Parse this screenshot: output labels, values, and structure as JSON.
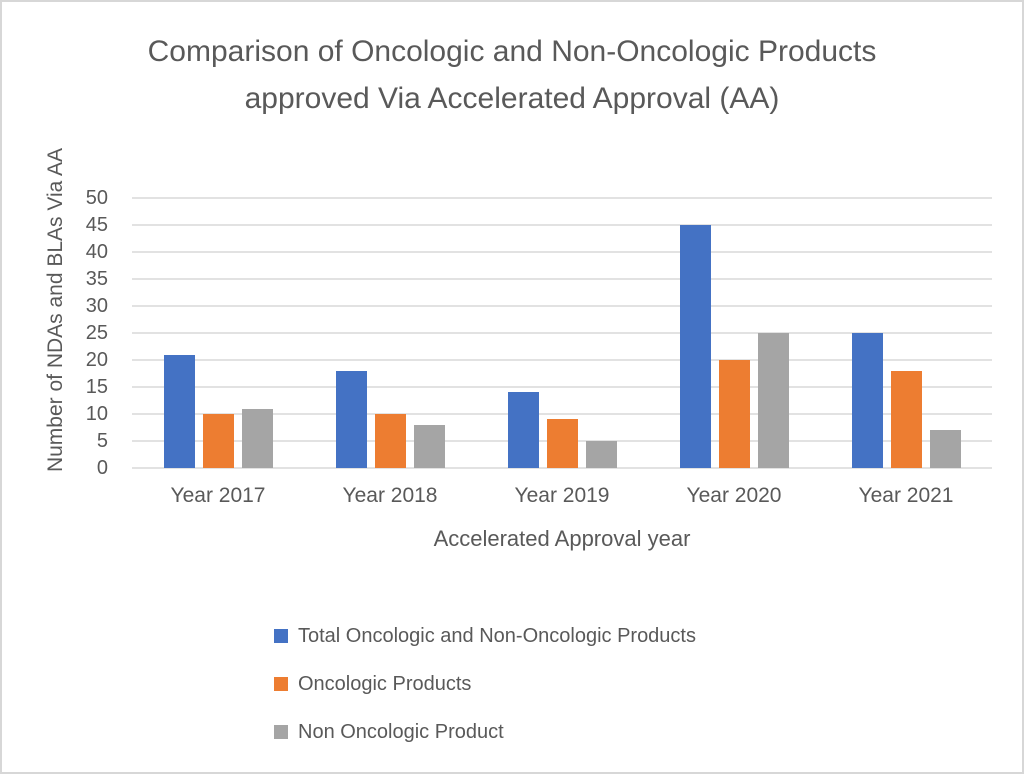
{
  "chart_data": {
    "type": "bar",
    "title": "Comparison of Oncologic and Non-Oncologic Products approved Via Accelerated Approval (AA)",
    "xlabel": "Accelerated Approval year",
    "ylabel": "Number of NDAs and BLAs Via AA",
    "categories": [
      "Year 2017",
      "Year 2018",
      "Year 2019",
      "Year 2020",
      "Year 2021"
    ],
    "series": [
      {
        "name": "Total Oncologic and Non-Oncologic Products",
        "color": "#4472C4",
        "values": [
          21,
          18,
          14,
          45,
          25
        ]
      },
      {
        "name": "Oncologic Products",
        "color": "#ED7D31",
        "values": [
          10,
          10,
          9,
          20,
          18
        ]
      },
      {
        "name": "Non Oncologic Product",
        "color": "#A5A5A5",
        "values": [
          11,
          8,
          5,
          25,
          7
        ]
      }
    ],
    "ylim": [
      0,
      50
    ],
    "ytick_step": 5,
    "grid": true,
    "legend_position": "bottom-left",
    "colors": {
      "text": "#595959",
      "gridline": "#E2E2E2",
      "background": "#FFFFFF",
      "border": "#D7D7D7"
    }
  }
}
